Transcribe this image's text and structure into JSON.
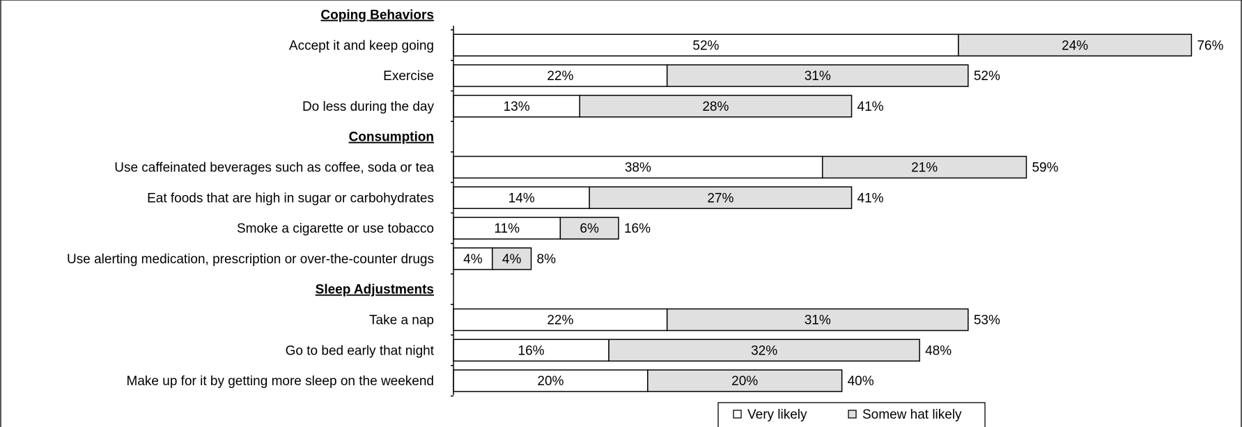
{
  "chart_data": {
    "type": "bar",
    "orientation": "horizontal",
    "stacked": true,
    "rows": [
      {
        "kind": "section",
        "label": "Coping Behaviors"
      },
      {
        "kind": "bar",
        "label": "Accept it and keep going",
        "values": [
          52,
          24
        ],
        "total": 76
      },
      {
        "kind": "bar",
        "label": "Exercise",
        "values": [
          22,
          31
        ],
        "total": 52
      },
      {
        "kind": "bar",
        "label": "Do less during the day",
        "values": [
          13,
          28
        ],
        "total": 41
      },
      {
        "kind": "section",
        "label": "Consumption"
      },
      {
        "kind": "bar",
        "label": "Use caffeinated beverages such as coffee, soda or tea",
        "values": [
          38,
          21
        ],
        "total": 59
      },
      {
        "kind": "bar",
        "label": "Eat foods that are high in sugar or carbohydrates",
        "values": [
          14,
          27
        ],
        "total": 41
      },
      {
        "kind": "bar",
        "label": "Smoke a cigarette or use tobacco",
        "values": [
          11,
          6
        ],
        "total": 16
      },
      {
        "kind": "bar",
        "label": "Use alerting medication, prescription or over-the-counter drugs",
        "values": [
          4,
          4
        ],
        "total": 8
      },
      {
        "kind": "section",
        "label": "Sleep Adjustments"
      },
      {
        "kind": "bar",
        "label": "Take a nap",
        "values": [
          22,
          31
        ],
        "total": 53
      },
      {
        "kind": "bar",
        "label": "Go to bed early that night",
        "values": [
          16,
          32
        ],
        "total": 48
      },
      {
        "kind": "bar",
        "label": "Make up for it by getting more sleep on the weekend",
        "values": [
          20,
          20
        ],
        "total": 40
      }
    ],
    "series": [
      {
        "name": "Very likely",
        "color": "#ffffff"
      },
      {
        "name": "Somew hat likely",
        "color": "#e0e0e0"
      }
    ],
    "value_suffix": "%",
    "xlim": [
      0,
      76
    ],
    "legend_position": "bottom-right",
    "grid": false
  }
}
